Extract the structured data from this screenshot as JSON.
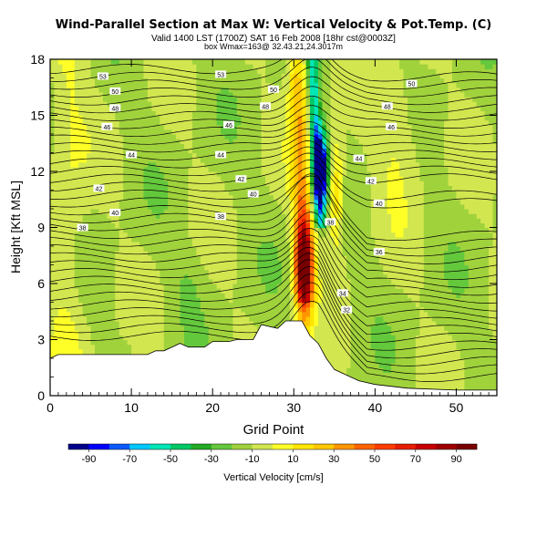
{
  "title_main": "Wind-Parallel Section at Max W: Vertical Velocity & Pot.Temp. (C)",
  "title_valid": "Valid 1400 LST (1700Z) SAT 16 Feb 2008 [18hr cst@0003Z]",
  "title_sub": "box Wmax=163@ 32.43.21,24.3017m",
  "chart_data": {
    "type": "heatmap",
    "xlabel": "Grid Point",
    "ylabel": "Height [Kft MSL]",
    "xlim": [
      0,
      55
    ],
    "ylim": [
      0,
      18
    ],
    "xticks": [
      0,
      10,
      20,
      30,
      40,
      50
    ],
    "yticks": [
      0,
      3,
      6,
      9,
      12,
      15,
      18
    ],
    "colorbar": {
      "label": "Vertical Velocity [cm/s]",
      "tick_labels": [
        -90,
        -70,
        -50,
        -30,
        -10,
        10,
        30,
        50,
        70,
        90
      ],
      "range": [
        -100,
        100
      ],
      "colors": [
        "#00008b",
        "#0000ff",
        "#0a5aff",
        "#00c8ff",
        "#00e6b4",
        "#00c864",
        "#22aa22",
        "#64c83c",
        "#a0d23c",
        "#d2e650",
        "#ffff28",
        "#ffe600",
        "#ffc800",
        "#ff9600",
        "#ff6400",
        "#ff3c00",
        "#e61e00",
        "#c80000",
        "#a00000",
        "#780000"
      ]
    },
    "terrain": [
      [
        0,
        2.0
      ],
      [
        1,
        2.2
      ],
      [
        12,
        2.2
      ],
      [
        13,
        2.4
      ],
      [
        14,
        2.4
      ],
      [
        15,
        2.6
      ],
      [
        16,
        2.8
      ],
      [
        17,
        2.6
      ],
      [
        19,
        2.6
      ],
      [
        20,
        2.9
      ],
      [
        22,
        2.9
      ],
      [
        23,
        3.0
      ],
      [
        25,
        3.0
      ],
      [
        26,
        3.8
      ],
      [
        28,
        3.6
      ],
      [
        29,
        4.0
      ],
      [
        31,
        4.0
      ],
      [
        32,
        3.2
      ],
      [
        33,
        2.8
      ],
      [
        34,
        2.0
      ],
      [
        35,
        1.4
      ],
      [
        37,
        1.0
      ],
      [
        38,
        0.8
      ],
      [
        40,
        0.6
      ],
      [
        44,
        0.4
      ],
      [
        50,
        0.3
      ],
      [
        55,
        0.3
      ]
    ],
    "theta_labels": [
      {
        "label": "53",
        "x": 6.5,
        "y": 17.1
      },
      {
        "label": "53",
        "x": 21,
        "y": 17.2
      },
      {
        "label": "50",
        "x": 8,
        "y": 16.3
      },
      {
        "label": "50",
        "x": 27.5,
        "y": 16.4
      },
      {
        "label": "50",
        "x": 44.5,
        "y": 16.7
      },
      {
        "label": "48",
        "x": 8,
        "y": 15.4
      },
      {
        "label": "48",
        "x": 26.5,
        "y": 15.5
      },
      {
        "label": "48",
        "x": 41.5,
        "y": 15.5
      },
      {
        "label": "46",
        "x": 7,
        "y": 14.4
      },
      {
        "label": "46",
        "x": 22,
        "y": 14.5
      },
      {
        "label": "46",
        "x": 42,
        "y": 14.4
      },
      {
        "label": "44",
        "x": 10,
        "y": 12.9
      },
      {
        "label": "44",
        "x": 21,
        "y": 12.9
      },
      {
        "label": "44",
        "x": 38,
        "y": 12.7
      },
      {
        "label": "42",
        "x": 6,
        "y": 11.1
      },
      {
        "label": "42",
        "x": 23.5,
        "y": 11.6
      },
      {
        "label": "42",
        "x": 39.5,
        "y": 11.5
      },
      {
        "label": "40",
        "x": 8,
        "y": 9.8
      },
      {
        "label": "40",
        "x": 25,
        "y": 10.8
      },
      {
        "label": "40",
        "x": 40.5,
        "y": 10.3
      },
      {
        "label": "38",
        "x": 4,
        "y": 9.0
      },
      {
        "label": "38",
        "x": 21,
        "y": 9.6
      },
      {
        "label": "38",
        "x": 34.5,
        "y": 9.3
      },
      {
        "label": "36",
        "x": 40.5,
        "y": 7.7
      },
      {
        "label": "34",
        "x": 36,
        "y": 5.5
      },
      {
        "label": "32",
        "x": 36.5,
        "y": 4.6
      }
    ]
  }
}
